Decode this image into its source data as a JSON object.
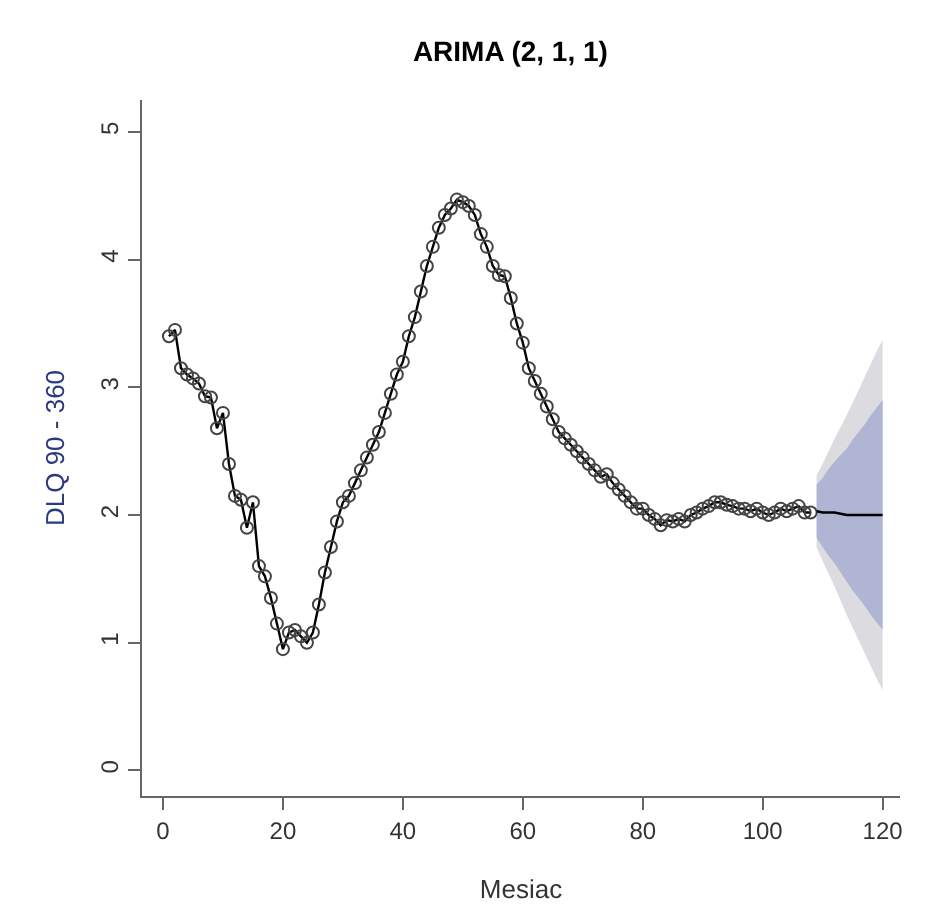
{
  "chart_data": {
    "type": "line",
    "title": "ARIMA (2, 1, 1)",
    "xlabel": "Mesiac",
    "ylabel": "DLQ 90 - 360",
    "xlim": [
      -3.5,
      122.9
    ],
    "ylim": [
      -0.2,
      5.25
    ],
    "xticks": [
      0,
      20,
      40,
      60,
      80,
      100,
      120
    ],
    "yticks": [
      0,
      1,
      2,
      3,
      4,
      5
    ],
    "series": [
      {
        "color": "#000000",
        "marker": "circle",
        "x": [
          1,
          2,
          3,
          4,
          5,
          6,
          7,
          8,
          9,
          10,
          11,
          12,
          13,
          14,
          15,
          16,
          17,
          18,
          19,
          20,
          21,
          22,
          23,
          24,
          25,
          26,
          27,
          28,
          29,
          30,
          31,
          32,
          33,
          34,
          35,
          36,
          37,
          38,
          39,
          40,
          41,
          42,
          43,
          44,
          45,
          46,
          47,
          48,
          49,
          50,
          51,
          52,
          53,
          54,
          55,
          56,
          57,
          58,
          59,
          60,
          61,
          62,
          63,
          64,
          65,
          66,
          67,
          68,
          69,
          70,
          71,
          72,
          73,
          74,
          75,
          76,
          77,
          78,
          79,
          80,
          81,
          82,
          83,
          84,
          85,
          86,
          87,
          88,
          89,
          90,
          91,
          92,
          93,
          94,
          95,
          96,
          97,
          98,
          99,
          100,
          101,
          102,
          103,
          104,
          105,
          106,
          107,
          108
        ],
        "values": [
          3.4,
          3.45,
          3.15,
          3.1,
          3.07,
          3.03,
          2.93,
          2.92,
          2.68,
          2.8,
          2.4,
          2.15,
          2.12,
          1.9,
          2.1,
          1.6,
          1.52,
          1.35,
          1.15,
          0.95,
          1.08,
          1.1,
          1.05,
          1.0,
          1.08,
          1.3,
          1.55,
          1.75,
          1.95,
          2.1,
          2.15,
          2.25,
          2.35,
          2.45,
          2.55,
          2.65,
          2.8,
          2.95,
          3.1,
          3.2,
          3.4,
          3.55,
          3.75,
          3.95,
          4.1,
          4.25,
          4.35,
          4.4,
          4.47,
          4.45,
          4.42,
          4.35,
          4.2,
          4.1,
          3.95,
          3.88,
          3.87,
          3.7,
          3.5,
          3.35,
          3.15,
          3.05,
          2.95,
          2.85,
          2.75,
          2.65,
          2.6,
          2.55,
          2.5,
          2.45,
          2.4,
          2.35,
          2.3,
          2.32,
          2.25,
          2.2,
          2.15,
          2.1,
          2.05,
          2.05,
          2.0,
          1.97,
          1.92,
          1.96,
          1.95,
          1.97,
          1.95,
          2.0,
          2.02,
          2.05,
          2.07,
          2.1,
          2.1,
          2.08,
          2.07,
          2.05,
          2.05,
          2.03,
          2.05,
          2.02,
          2.0,
          2.02,
          2.05,
          2.03,
          2.05,
          2.07,
          2.02,
          2.02
        ]
      },
      {
        "color": "#dbdbe0",
        "x": [
          109,
          110,
          111,
          112,
          113,
          114,
          115,
          116,
          117,
          118,
          119,
          120
        ],
        "values": [
          null,
          null,
          null,
          null,
          null,
          null,
          null,
          null,
          null,
          null,
          null,
          null
        ],
        "lower": [
          1.75,
          1.64,
          1.54,
          1.44,
          1.33,
          1.22,
          1.12,
          1.02,
          0.92,
          0.82,
          0.72,
          0.63
        ],
        "upper": [
          2.31,
          2.4,
          2.5,
          2.6,
          2.69,
          2.78,
          2.88,
          2.98,
          3.08,
          3.18,
          3.28,
          3.37
        ]
      },
      {
        "color": "#b1b5d4",
        "x": [
          109,
          110,
          111,
          112,
          113,
          114,
          115,
          116,
          117,
          118,
          119,
          120
        ],
        "values": [
          null,
          null,
          null,
          null,
          null,
          null,
          null,
          null,
          null,
          null,
          null,
          null
        ],
        "lower": [
          1.82,
          1.75,
          1.68,
          1.62,
          1.55,
          1.48,
          1.41,
          1.35,
          1.29,
          1.22,
          1.16,
          1.1
        ],
        "upper": [
          2.24,
          2.29,
          2.36,
          2.42,
          2.47,
          2.52,
          2.59,
          2.65,
          2.71,
          2.78,
          2.84,
          2.9
        ]
      },
      {
        "color": "#000000",
        "x": [
          109,
          110,
          111,
          112,
          113,
          114,
          115,
          116,
          117,
          118,
          119,
          120
        ],
        "values": [
          2.03,
          2.02,
          2.02,
          2.02,
          2.01,
          2.0,
          2.0,
          2.0,
          2.0,
          2.0,
          2.0,
          2.0
        ]
      }
    ]
  }
}
